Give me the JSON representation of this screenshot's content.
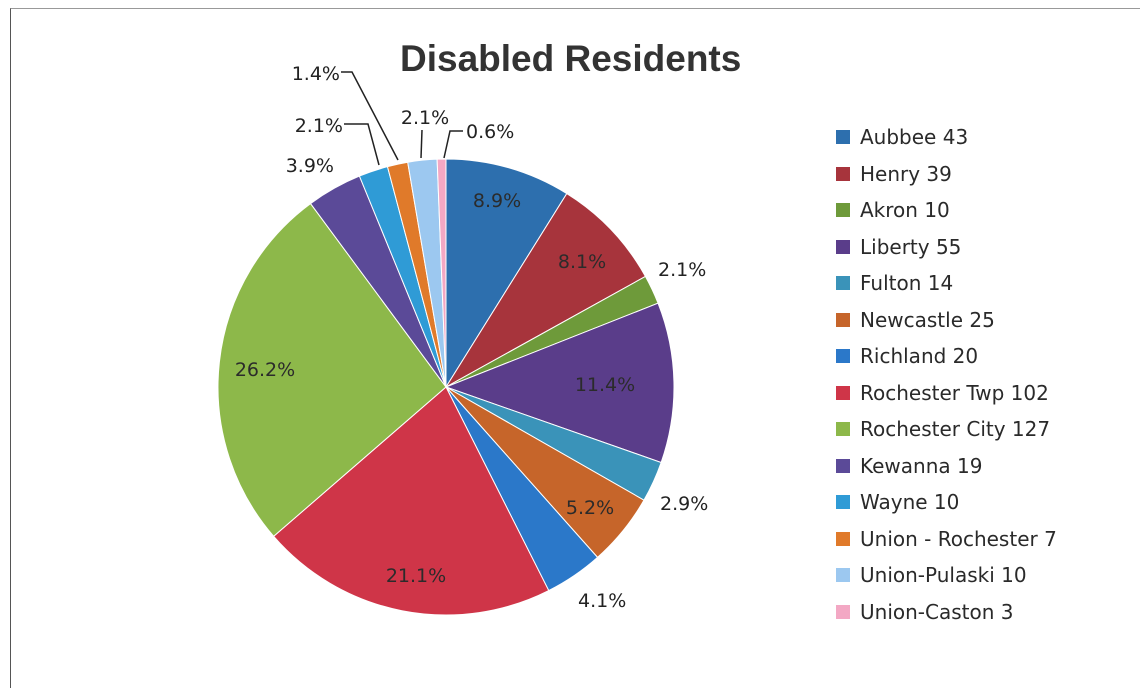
{
  "chart_data": {
    "type": "pie",
    "title": "Disabled Residents",
    "legend_position": "right",
    "start_angle_deg": 0,
    "direction": "clockwise",
    "slices": [
      {
        "legend": "Aubbee 43",
        "value": 43,
        "label": "8.9%",
        "color": "#2d6fae"
      },
      {
        "legend": "Henry 39",
        "value": 39,
        "label": "8.1%",
        "color": "#a7343c"
      },
      {
        "legend": "Akron 10",
        "value": 10,
        "label": "2.1%",
        "color": "#6e9a3a"
      },
      {
        "legend": "Liberty 55",
        "value": 55,
        "label": "11.4%",
        "color": "#5a3d8a"
      },
      {
        "legend": "Fulton 14",
        "value": 14,
        "label": "2.9%",
        "color": "#3a93b9"
      },
      {
        "legend": "Newcastle 25",
        "value": 25,
        "label": "5.2%",
        "color": "#c6652a"
      },
      {
        "legend": "Richland 20",
        "value": 20,
        "label": "4.1%",
        "color": "#2b78c9"
      },
      {
        "legend": "Rochester Twp 102",
        "value": 102,
        "label": "21.1%",
        "color": "#cf3548"
      },
      {
        "legend": "Rochester City  127",
        "value": 127,
        "label": "26.2%",
        "color": "#8db84a"
      },
      {
        "legend": "Kewanna 19",
        "value": 19,
        "label": "3.9%",
        "color": "#5b4a98"
      },
      {
        "legend": "Wayne 10",
        "value": 10,
        "label": "2.1%",
        "color": "#2f9bd6"
      },
      {
        "legend": "Union - Rochester 7",
        "value": 7,
        "label": "1.4%",
        "color": "#e07a2a"
      },
      {
        "legend": "Union-Pulaski 10",
        "value": 10,
        "label": "2.1%",
        "color": "#9cc8f0"
      },
      {
        "legend": "Union-Caston 3",
        "value": 3,
        "label": "0.6%",
        "color": "#f3a8c4"
      }
    ]
  }
}
